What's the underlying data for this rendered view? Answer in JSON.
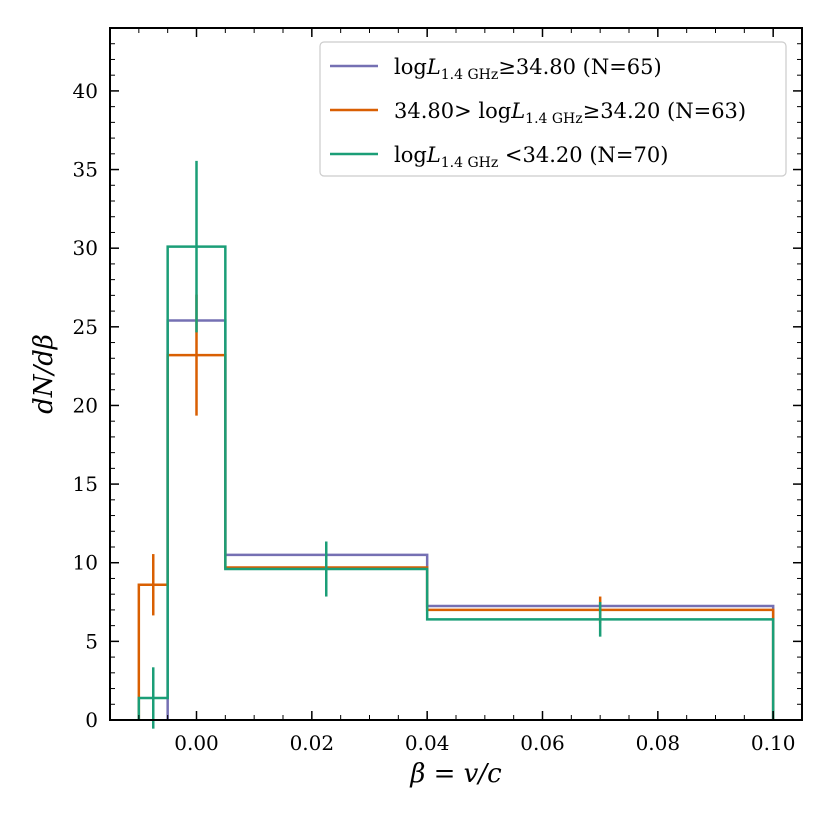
{
  "chart_data": {
    "type": "histogram-step",
    "title": "",
    "xlabel": "β = v/c",
    "ylabel": "dN/dβ",
    "xlim": [
      -0.015,
      0.105
    ],
    "ylim": [
      0,
      44
    ],
    "x_ticks": [
      0.0,
      0.02,
      0.04,
      0.06,
      0.08,
      0.1
    ],
    "x_tick_labels": [
      "0.00",
      "0.02",
      "0.04",
      "0.06",
      "0.08",
      "0.10"
    ],
    "y_ticks": [
      0,
      5,
      10,
      15,
      20,
      25,
      30,
      35,
      40
    ],
    "y_tick_labels": [
      "0",
      "5",
      "10",
      "15",
      "20",
      "25",
      "30",
      "35",
      "40"
    ],
    "legend_position": "top-right",
    "grid": false,
    "series": [
      {
        "name": "log L1.4GHz≥34.80 (N̄=65)",
        "legend_label": {
          "main": "log",
          "sub": "1.4 GHz",
          "rest": "≥34.80 (N=65)"
        },
        "color": "#7570b3",
        "edges": [
          -0.005,
          0.005,
          0.04,
          0.1
        ],
        "values": [
          25.4,
          10.5,
          7.25
        ],
        "errorbars": [
          {
            "x": 0.0,
            "y": 25.4,
            "yerr": 0
          },
          {
            "x": 0.0225,
            "y": 10.5,
            "yerr": 0
          },
          {
            "x": 0.07,
            "y": 7.25,
            "yerr": 0
          }
        ]
      },
      {
        "name": "34.80> log L1.4GHz≥34.20 (N̄=63)",
        "legend_label": {
          "pre": "34.80> ",
          "main": "log",
          "sub": "1.4 GHz",
          "rest": "≥34.20 (N=63)"
        },
        "color": "#d95f02",
        "edges": [
          -0.01,
          -0.005,
          0.005,
          0.04,
          0.1
        ],
        "values": [
          8.6,
          23.2,
          9.7,
          7.0
        ],
        "errorbars": [
          {
            "x": -0.0075,
            "y": 8.6,
            "yerr": 1.95
          },
          {
            "x": 0.0,
            "y": 23.2,
            "yerr": 3.85
          },
          {
            "x": 0.0225,
            "y": 9.7,
            "yerr": 0
          },
          {
            "x": 0.07,
            "y": 7.0,
            "yerr": 0.85
          }
        ]
      },
      {
        "name": "log L1.4GHz <34.20 (N̄=70)",
        "legend_label": {
          "main": "log",
          "sub": "1.4 GHz",
          "rest": " <34.20 (N=70)"
        },
        "color": "#1b9e77",
        "edges": [
          -0.01,
          -0.005,
          0.005,
          0.04,
          0.1
        ],
        "values": [
          1.4,
          30.1,
          9.6,
          6.4
        ],
        "errorbars": [
          {
            "x": -0.0075,
            "y": 1.4,
            "yerr": 1.95
          },
          {
            "x": 0.0,
            "y": 30.1,
            "yerr": 5.45
          },
          {
            "x": 0.0225,
            "y": 9.6,
            "yerr": 1.75
          },
          {
            "x": 0.07,
            "y": 6.4,
            "yerr": 1.1
          }
        ]
      }
    ]
  }
}
